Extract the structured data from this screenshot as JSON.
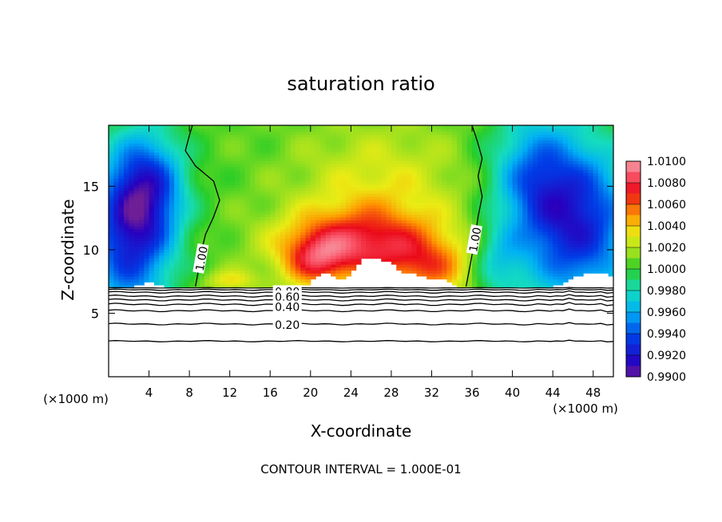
{
  "chart_data": {
    "type": "heatmap",
    "title": "saturation ratio",
    "xlabel": "X-coordinate",
    "ylabel": "Z-coordinate",
    "x_unit": "(×1000 m)",
    "x_ticks": [
      4,
      8,
      12,
      16,
      20,
      24,
      28,
      32,
      36,
      40,
      44,
      48
    ],
    "y_ticks": [
      5,
      10,
      15
    ],
    "xlim": [
      0,
      50
    ],
    "ylim": [
      0,
      19.8
    ],
    "colorbar": {
      "min": 0.99,
      "max": 1.01,
      "labels": [
        "1.0100",
        "1.0080",
        "1.0060",
        "1.0040",
        "1.0020",
        "1.0000",
        "0.9980",
        "0.9960",
        "0.9940",
        "0.9920",
        "0.9900"
      ]
    },
    "contour_labels": [
      {
        "text": "1.00",
        "x": 9.2,
        "z": 9.3
      },
      {
        "text": "1.00",
        "x": 36.3,
        "z": 10.8
      },
      {
        "text": "0.80",
        "x": 17.7,
        "z": 6.7
      },
      {
        "text": "0.60",
        "x": 17.7,
        "z": 6.3
      },
      {
        "text": "0.40",
        "x": 17.7,
        "z": 5.5
      },
      {
        "text": "0.20",
        "x": 17.7,
        "z": 4.1
      }
    ],
    "footnote": "CONTOUR INTERVAL = 1.000E-01"
  }
}
